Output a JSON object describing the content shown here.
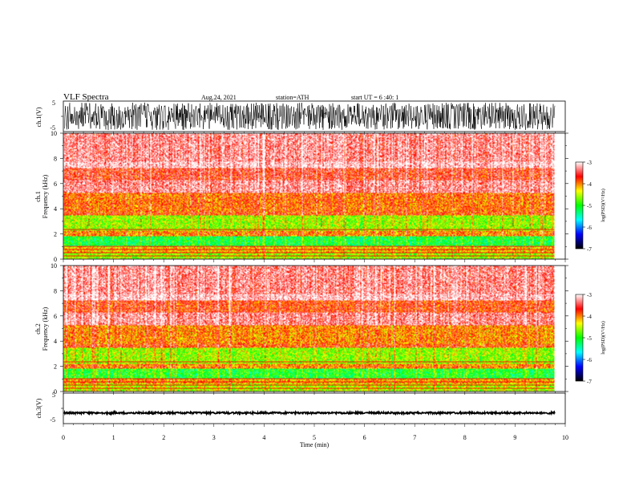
{
  "header": {
    "title": "VLF  Spectra",
    "date": "Aug.24, 2021",
    "station": "station=ATH",
    "start_ut": "start  UT  =    6  :40: 1"
  },
  "colors": {
    "psd_scale": [
      "#000000",
      "#0000ff",
      "#00ffff",
      "#00ff00",
      "#ffff00",
      "#ff0000",
      "#ffffff"
    ],
    "waveform": "#000000"
  },
  "chart_data": [
    {
      "type": "line",
      "panel": "ch1-waveform",
      "ylabel": "ch.1(V)",
      "ylim": [
        -5,
        5
      ],
      "yticks": [
        "5",
        "-5"
      ],
      "xlim": [
        0,
        10
      ],
      "xlabel": "",
      "description_values": {
        "amplitude_fraction": 0.9,
        "end_time_min": 9.8
      }
    },
    {
      "type": "heatmap",
      "panel": "ch1-spectrogram",
      "ylabel": "ch.1\nFrequency (kHz)",
      "ylabel_lines": [
        "ch.1",
        "Frequency (kHz)"
      ],
      "ylim": [
        0,
        10
      ],
      "yticks": [
        "0",
        "2",
        "4",
        "6",
        "8",
        "10"
      ],
      "xlim": [
        0,
        10
      ],
      "end_time_min": 9.8,
      "colorbar": {
        "label": "log(PSD)(V²/Hz)",
        "range": [
          -7,
          -3
        ],
        "ticks": [
          "-3",
          "-4",
          "-5",
          "-6",
          "-7"
        ]
      },
      "bands_khz": [
        {
          "from": 0.0,
          "to": 0.5,
          "level": -4.6
        },
        {
          "from": 0.5,
          "to": 1.0,
          "level": -4.2
        },
        {
          "from": 1.0,
          "to": 1.8,
          "level": -5.1
        },
        {
          "from": 1.8,
          "to": 2.3,
          "level": -4.0
        },
        {
          "from": 2.3,
          "to": 3.5,
          "level": -4.6
        },
        {
          "from": 3.5,
          "to": 3.8,
          "level": -3.8
        },
        {
          "from": 3.8,
          "to": 5.3,
          "level": -3.9
        },
        {
          "from": 5.3,
          "to": 6.3,
          "level": -3.3
        },
        {
          "from": 6.3,
          "to": 7.3,
          "level": -3.6
        },
        {
          "from": 7.3,
          "to": 7.8,
          "level": -3.1
        },
        {
          "from": 7.8,
          "to": 10.0,
          "level": -3.3
        }
      ]
    },
    {
      "type": "heatmap",
      "panel": "ch2-spectrogram",
      "ylabel": "ch.2\nFrequency (kHz)",
      "ylabel_lines": [
        "ch.2",
        "Frequency (kHz)"
      ],
      "ylim": [
        0,
        10
      ],
      "yticks": [
        "0",
        "2",
        "4",
        "6",
        "8",
        "10"
      ],
      "xlim": [
        0,
        10
      ],
      "end_time_min": 9.8,
      "colorbar": {
        "label": "log(PSD)(V²/Hz)",
        "range": [
          -7,
          -3
        ],
        "ticks": [
          "-3",
          "-4",
          "-5",
          "-6",
          "-7"
        ]
      },
      "bands_khz": [
        {
          "from": 0.0,
          "to": 0.6,
          "level": -4.5
        },
        {
          "from": 0.6,
          "to": 1.0,
          "level": -4.1
        },
        {
          "from": 1.0,
          "to": 1.8,
          "level": -5.0
        },
        {
          "from": 1.8,
          "to": 2.2,
          "level": -4.0
        },
        {
          "from": 2.2,
          "to": 3.5,
          "level": -4.6
        },
        {
          "from": 3.5,
          "to": 3.8,
          "level": -3.8
        },
        {
          "from": 3.8,
          "to": 5.3,
          "level": -4.0
        },
        {
          "from": 5.3,
          "to": 6.3,
          "level": -3.3
        },
        {
          "from": 6.3,
          "to": 7.3,
          "level": -3.7
        },
        {
          "from": 7.3,
          "to": 7.8,
          "level": -3.1
        },
        {
          "from": 7.8,
          "to": 10.0,
          "level": -3.3
        }
      ]
    },
    {
      "type": "line",
      "panel": "ch3-waveform",
      "ylabel": "ch.3(V)",
      "ylim": [
        -5,
        5
      ],
      "yticks": [
        "5",
        "-5"
      ],
      "xlim": [
        0,
        10
      ],
      "xlabel": "Time  (min)",
      "xticks": [
        "0",
        "1",
        "2",
        "3",
        "4",
        "5",
        "6",
        "7",
        "8",
        "9",
        "10"
      ],
      "description_values": {
        "amplitude_fraction": 0.06,
        "offset_v": -1.5,
        "end_time_min": 9.8
      }
    }
  ]
}
